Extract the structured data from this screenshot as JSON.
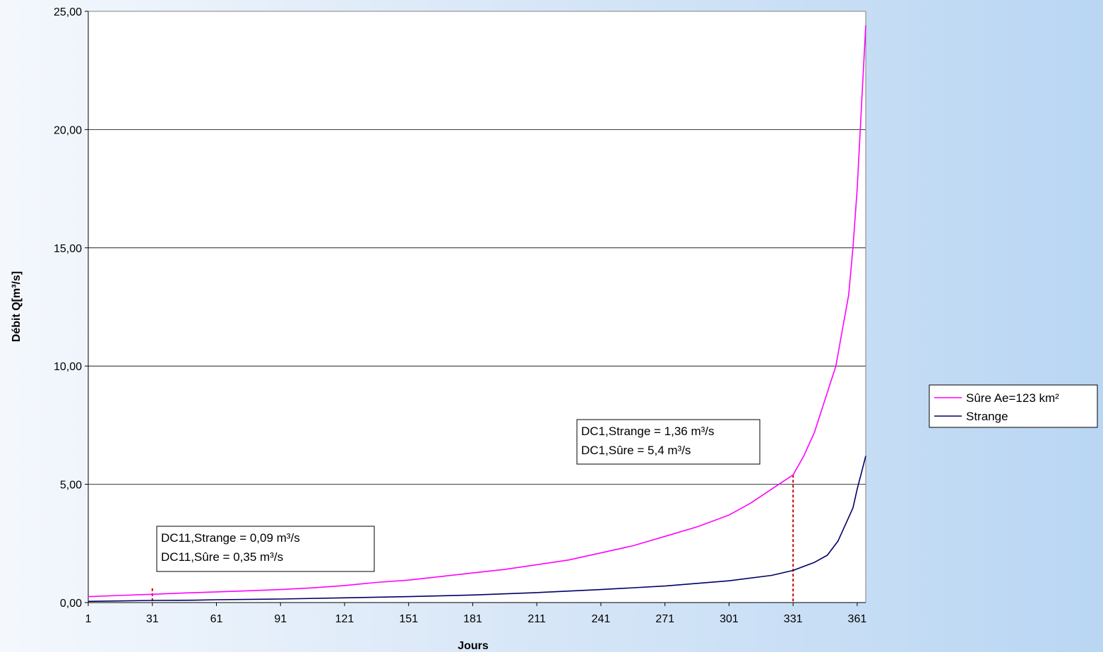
{
  "colors": {
    "plot_background": "#ffffff",
    "grid": "#000000",
    "marker": "#cc0000",
    "series_sure": "#ff00ff",
    "series_strange": "#000066"
  },
  "chart_data": {
    "type": "line",
    "title": "",
    "xlabel": "Jours",
    "ylabel": "Débit Q[m³/s]",
    "xlim": [
      1,
      365
    ],
    "ylim": [
      0,
      25
    ],
    "grid": true,
    "legend_position": "right",
    "x_ticks": [
      "1",
      "31",
      "61",
      "91",
      "121",
      "151",
      "181",
      "211",
      "241",
      "271",
      "301",
      "331",
      "361"
    ],
    "y_ticks": [
      "0,00",
      "5,00",
      "10,00",
      "15,00",
      "20,00",
      "25,00"
    ],
    "series": [
      {
        "name": "Sûre Ae=123 km²",
        "color": "#ff00ff",
        "x": [
          1,
          15,
          31,
          45,
          61,
          76,
          91,
          106,
          121,
          136,
          151,
          166,
          181,
          196,
          211,
          226,
          241,
          256,
          271,
          286,
          301,
          311,
          321,
          331,
          336,
          341,
          346,
          351,
          354,
          357,
          359,
          361,
          363,
          365
        ],
        "y": [
          0.25,
          0.3,
          0.35,
          0.4,
          0.45,
          0.5,
          0.55,
          0.62,
          0.72,
          0.85,
          0.95,
          1.1,
          1.25,
          1.4,
          1.6,
          1.8,
          2.1,
          2.4,
          2.8,
          3.2,
          3.7,
          4.2,
          4.8,
          5.4,
          6.2,
          7.2,
          8.6,
          10.0,
          11.5,
          13.0,
          15.0,
          17.5,
          21.0,
          24.4
        ]
      },
      {
        "name": "Strange",
        "color": "#000066",
        "x": [
          1,
          31,
          50,
          61,
          91,
          121,
          151,
          181,
          211,
          241,
          271,
          301,
          321,
          331,
          341,
          347,
          352,
          356,
          359,
          361,
          363,
          365
        ],
        "y": [
          0.05,
          0.09,
          0.1,
          0.12,
          0.15,
          0.2,
          0.25,
          0.32,
          0.42,
          0.55,
          0.7,
          0.92,
          1.15,
          1.36,
          1.7,
          2.0,
          2.6,
          3.4,
          4.0,
          4.8,
          5.5,
          6.2
        ]
      }
    ],
    "markers": [
      {
        "x": 31,
        "y": 0.6
      },
      {
        "x": 331,
        "y": 5.4
      }
    ],
    "annotations": [
      {
        "lines": [
          "DC1,Strange = 1,36 m³/s",
          "DC1,Sûre = 5,4 m³/s"
        ]
      },
      {
        "lines": [
          "DC11,Strange = 0,09 m³/s",
          "DC11,Sûre = 0,35 m³/s"
        ]
      }
    ]
  }
}
